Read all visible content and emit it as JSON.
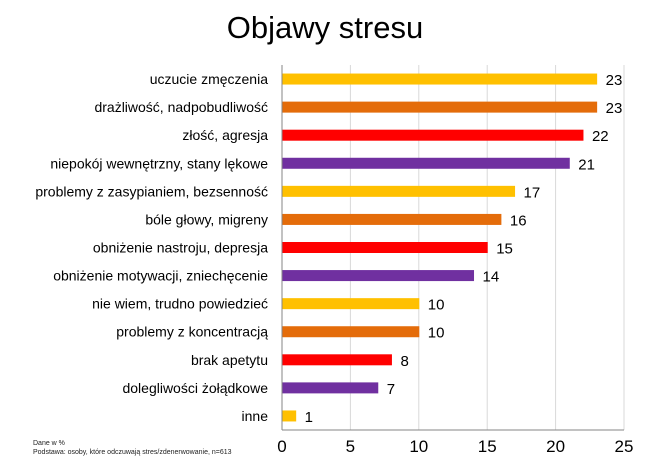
{
  "chart_data": {
    "type": "bar",
    "orientation": "horizontal",
    "title": "Objawy stresu",
    "categories": [
      "uczucie zmęczenia",
      "drażliwość, nadpobudliwość",
      "złość, agresja",
      "niepokój wewnętrzny, stany lękowe",
      "problemy z zasypianiem, bezsenność",
      "bóle głowy, migreny",
      "obniżenie nastroju, depresja",
      "obniżenie motywacji, zniechęcenie",
      "nie wiem, trudno powiedzieć",
      "problemy z koncentracją",
      "brak apetytu",
      "dolegliwości żołądkowe",
      "inne"
    ],
    "values": [
      23,
      23,
      22,
      21,
      17,
      16,
      15,
      14,
      10,
      10,
      8,
      7,
      1
    ],
    "bar_colors": [
      "#FFC000",
      "#E46C0A",
      "#FF0000",
      "#7030A0",
      "#FFC000",
      "#E46C0A",
      "#FF0000",
      "#7030A0",
      "#FFC000",
      "#E46C0A",
      "#FF0000",
      "#7030A0",
      "#FFC000"
    ],
    "xlim": [
      0,
      25
    ],
    "xticks": [
      "0",
      "5",
      "10",
      "15",
      "20",
      "25"
    ],
    "grid": true,
    "legend": "none"
  },
  "footnote": {
    "line1": "Dane w %",
    "line2": "Podstawa: osoby, które odczuwają stres/zdenerwowanie, n=613"
  }
}
